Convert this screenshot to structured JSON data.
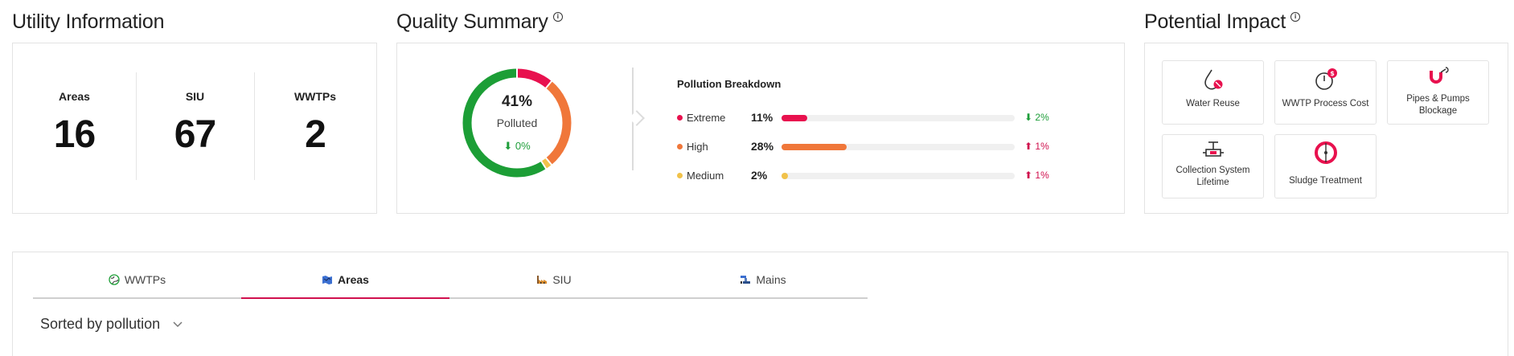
{
  "utility_info": {
    "title": "Utility Information",
    "stats": [
      {
        "label": "Areas",
        "value": "16"
      },
      {
        "label": "SIU",
        "value": "67"
      },
      {
        "label": "WWTPs",
        "value": "2"
      }
    ]
  },
  "quality_summary": {
    "title": "Quality Summary",
    "info_icon": "info-circle-icon",
    "donut": {
      "percent": "41%",
      "label": "Polluted",
      "delta": "0%",
      "segments": [
        {
          "name": "Extreme",
          "fraction": 0.11,
          "color": "#e8114e"
        },
        {
          "name": "High",
          "fraction": 0.28,
          "color": "#f0773a"
        },
        {
          "name": "Medium",
          "fraction": 0.02,
          "color": "#f1c24a"
        },
        {
          "name": "Clean",
          "fraction": 0.59,
          "color": "#1c9e36"
        }
      ]
    },
    "breakdown_title": "Pollution Breakdown",
    "breakdown": [
      {
        "name": "Extreme",
        "value": "11%",
        "fraction": 0.11,
        "color": "#e8114e",
        "delta": "2%",
        "delta_dir": "down",
        "delta_color": "#1e9e3a"
      },
      {
        "name": "High",
        "value": "28%",
        "fraction": 0.28,
        "color": "#f0773a",
        "delta": "1%",
        "delta_dir": "up",
        "delta_color": "#d0114e"
      },
      {
        "name": "Medium",
        "value": "2%",
        "fraction": 0.02,
        "color": "#f1c24a",
        "delta": "1%",
        "delta_dir": "up",
        "delta_color": "#d0114e"
      }
    ]
  },
  "potential_impact": {
    "title": "Potential Impact",
    "items": [
      {
        "label": "Water Reuse",
        "icon": "water-drop-icon"
      },
      {
        "label": "WWTP Process Cost",
        "icon": "cost-gauge-icon"
      },
      {
        "label": "Pipes & Pumps Blockage",
        "icon": "pipe-blockage-icon"
      },
      {
        "label": "Collection System Lifetime",
        "icon": "valve-icon"
      },
      {
        "label": "Sludge Treatment",
        "icon": "sludge-tank-icon"
      }
    ]
  },
  "tabs": [
    {
      "label": "WWTPs",
      "icon": "globe-icon"
    },
    {
      "label": "Areas",
      "icon": "map-icon"
    },
    {
      "label": "SIU",
      "icon": "factory-icon"
    },
    {
      "label": "Mains",
      "icon": "pipes-icon"
    }
  ],
  "active_tab": "Areas",
  "sort": {
    "label": "Sorted by pollution",
    "icon": "chevron-down-icon"
  }
}
